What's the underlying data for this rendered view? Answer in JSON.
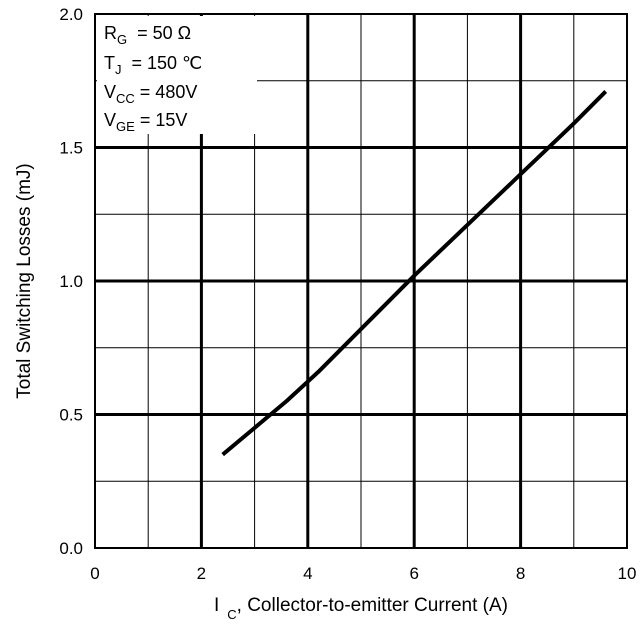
{
  "chart_data": {
    "type": "line",
    "title": "",
    "xlabel": {
      "main": "I",
      "sub": "C",
      "rest": ", Collector-to-emitter Current (A)"
    },
    "ylabel": "Total Switching Losses (mJ)",
    "xlim": [
      0,
      10
    ],
    "ylim": [
      0,
      2.0
    ],
    "x_ticks": [
      "0",
      "2",
      "4",
      "6",
      "8",
      "10"
    ],
    "y_ticks": [
      "0.0",
      "0.5",
      "1.0",
      "1.5",
      "2.0"
    ],
    "grid": true,
    "minor_grid": true,
    "series": [
      {
        "x": [
          2.4,
          3.0,
          3.6,
          4.2,
          5.0,
          6.0,
          7.0,
          8.0,
          9.0,
          9.6
        ],
        "y": [
          0.35,
          0.45,
          0.55,
          0.66,
          0.82,
          1.02,
          1.21,
          1.4,
          1.59,
          1.71
        ]
      }
    ],
    "annotations": {
      "rg": {
        "main": "R",
        "sub": "G",
        "rest": "  = 50 Ω"
      },
      "tj": {
        "main": "T",
        "sub": "J",
        "rest": "  = 150 ℃"
      },
      "vcc": {
        "main": "V",
        "sub": "CC",
        "rest": " = 480V"
      },
      "vge": {
        "main": "V",
        "sub": "GE",
        "rest": " = 15V"
      }
    },
    "colors": {
      "line": "#000000",
      "grid": "#000000",
      "background": "#ffffff"
    }
  }
}
